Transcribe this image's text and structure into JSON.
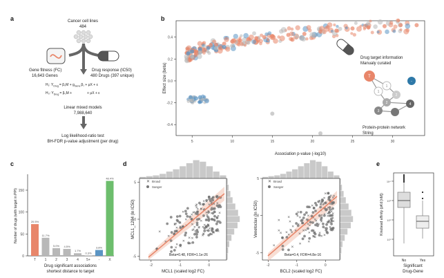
{
  "panel_letters": {
    "a": "a",
    "b": "b",
    "c": "c",
    "d": "d",
    "e": "e"
  },
  "panel_a": {
    "cell_lines_title": "Cancer cell lines",
    "cell_lines_count": "484",
    "gene_fitness_title": "Gene fitness (FC)",
    "gene_fitness_count": "16,643 Genes",
    "drug_response_title": "Drug response (IC50)",
    "drug_response_count": "480 Drugs (397 unique)",
    "h1_lhs": "H₁: Y",
    "h1_sub": "Drug",
    "h1_rhs": "= β₀M + g",
    "h1_sub2": "Gene",
    "h1_rest": "β₁ + μX + ε",
    "h0_lhs": "H₀: Y",
    "h0_sub": "Drug",
    "h0_rhs": "= β₀M +",
    "h0_rest": "+ μX + ε",
    "lmm_title": "Linear mixed models",
    "lmm_count": "7,988,640",
    "test_title": "Log likelihood-ratio test",
    "test_sub": "BH-FDR p-value adjustment (per drug)"
  },
  "panel_b": {
    "ylabel": "Effect size (beta)",
    "xlabel": "Association p-value (-log10)",
    "drug_target_title": "Drug target information",
    "drug_target_sub": "Manualy curated",
    "ppi_title": "Protein-protein network",
    "ppi_sub": "String",
    "node_T": "T",
    "node_1a": "1",
    "node_1b": "1",
    "node_2a": "2",
    "node_2b": "2",
    "node_3": "3",
    "node_4": "4",
    "node_dash": "-",
    "x_ticks": [
      "5",
      "10",
      "15",
      "20",
      "25",
      "30"
    ],
    "y_ticks": [
      "0.4",
      "0.2",
      "0.0",
      "-0.2",
      "-0.4"
    ],
    "colors": {
      "orange": "#E8866A",
      "blue": "#5B95C4",
      "grey": "#B8B8B8"
    }
  },
  "chart_data": [
    {
      "type": "scatter",
      "xlabel": "Association p-value (-log10)",
      "ylabel": "Effect size (beta)",
      "xlim": [
        3,
        34
      ],
      "ylim": [
        -0.5,
        0.55
      ],
      "series": [
        {
          "points": [
            [
              5,
              0.28
            ],
            [
              6,
              0.3
            ],
            [
              7,
              0.31
            ],
            [
              8,
              0.33
            ],
            [
              9,
              0.34
            ],
            [
              10,
              0.36
            ],
            [
              11,
              0.37
            ],
            [
              12,
              0.38
            ],
            [
              13,
              0.39
            ],
            [
              14,
              0.4
            ],
            [
              15,
              0.41
            ],
            [
              17,
              0.42
            ],
            [
              19,
              0.43
            ],
            [
              21,
              0.45
            ],
            [
              23,
              0.46
            ],
            [
              25,
              0.48
            ],
            [
              27,
              0.49
            ],
            [
              29,
              0.5
            ],
            [
              31,
              0.51
            ],
            [
              33,
              0.51
            ]
          ]
        },
        {
          "points": [
            [
              4.5,
              0.25
            ],
            [
              5,
              0.27
            ],
            [
              6,
              0.29
            ],
            [
              7,
              0.3
            ],
            [
              8,
              0.28
            ],
            [
              9,
              0.31
            ],
            [
              4.8,
              -0.15
            ],
            [
              5.2,
              -0.17
            ],
            [
              5.5,
              -0.16
            ],
            [
              6,
              -0.15
            ]
          ]
        },
        {
          "points": [
            [
              5,
              0.22
            ],
            [
              6,
              0.26
            ],
            [
              8,
              0.3
            ],
            [
              10,
              0.32
            ],
            [
              12,
              0.35
            ],
            [
              15,
              -0.3
            ],
            [
              21,
              -0.48
            ],
            [
              5,
              -0.18
            ]
          ]
        }
      ]
    },
    {
      "type": "bar",
      "ylabel": "Number of drugs (with target in PPI)",
      "xlabel": "Drug significant associations shortest distance to target",
      "categories": [
        "T",
        "1",
        "2",
        "3",
        "4",
        "5+",
        "-",
        "X"
      ],
      "values": [
        20.5,
        11.7,
        5.0,
        4.5,
        1.7,
        0.3,
        3.8,
        48.4
      ],
      "labels": [
        "20.5%",
        "11.7%",
        "5.0%",
        "4.5%",
        "1.7%",
        "0.3%",
        "3.8%",
        "48.4%"
      ],
      "colors": [
        "#E8866A",
        "#B8B8B8",
        "#B8B8B8",
        "#B8B8B8",
        "#B8B8B8",
        "#B8B8B8",
        "#5B95C4",
        "#6DBE6D"
      ]
    },
    {
      "type": "scatter",
      "xlabel": "MCL1 (scaled log2 FC)",
      "ylabel": "MCL1_1284 (ln IC50)",
      "xlim": [
        -2.4,
        0.6
      ],
      "ylim": [
        -5.5,
        5.5
      ],
      "series": [
        {
          "name": "Broad",
          "points": [
            [
              -1.5,
              -3
            ],
            [
              -1,
              -1
            ],
            [
              -0.8,
              0
            ],
            [
              -0.5,
              1
            ],
            [
              -0.3,
              2
            ],
            [
              0,
              3
            ],
            [
              -0.2,
              -2
            ],
            [
              0.2,
              1
            ]
          ]
        },
        {
          "name": "Sanger",
          "points": [
            [
              -1.8,
              -4
            ],
            [
              -1.2,
              -2
            ],
            [
              -0.9,
              -1
            ],
            [
              -0.6,
              0
            ],
            [
              -0.4,
              1
            ],
            [
              -0.2,
              2
            ],
            [
              0,
              3
            ],
            [
              0.1,
              0
            ],
            [
              -0.1,
              -1
            ]
          ]
        }
      ],
      "annotation": "Beta=0.48, FDR=1.1e-26"
    },
    {
      "type": "scatter",
      "xlabel": "BCL2 (scaled log2 FC)",
      "ylabel": "Venetoclax (ln IC50)",
      "xlim": [
        -2.2,
        0.5
      ],
      "ylim": [
        -6,
        5
      ],
      "series": [
        {
          "name": "Broad",
          "points": [
            [
              -1.8,
              -4
            ],
            [
              -1.2,
              -2
            ],
            [
              -0.6,
              0
            ],
            [
              -0.2,
              2
            ],
            [
              0,
              3
            ]
          ]
        },
        {
          "name": "Sanger",
          "points": [
            [
              -1.5,
              -3
            ],
            [
              -0.8,
              -1
            ],
            [
              -0.4,
              1
            ],
            [
              -0.1,
              2
            ],
            [
              0.1,
              3
            ]
          ]
        }
      ],
      "annotation": "Beta=0.4, FDR=4.8e-16"
    },
    {
      "type": "box",
      "ylabel": "Kinobead affinity (pKd [nM])",
      "xlabel": "Significant Drug-Gene",
      "categories": [
        "No",
        "Yes"
      ],
      "y_ticks": [
        "10⁴",
        "10³",
        "10²",
        "10¹"
      ]
    }
  ],
  "panel_c": {
    "ylabel": "Number of drugs (with target in PPI)",
    "xlabel1": "Drug significant associations",
    "xlabel2": "shortest distance to target",
    "y_ticks": [
      "0",
      "50",
      "100",
      "150"
    ]
  },
  "panel_d": {
    "left_ylabel": "MCL1_1284 (ln IC50)",
    "left_xlabel": "MCL1 (scaled log2 FC)",
    "left_annotation": "Beta=0.48, FDR=1.1e-26",
    "left_x_ticks": [
      "-2",
      "-1",
      "0"
    ],
    "left_y_ticks": [
      "5",
      "0",
      "-5"
    ],
    "right_ylabel": "Venetoclax (ln IC50)",
    "right_xlabel": "BCL2 (scaled log2 FC)",
    "right_annotation": "Beta=0.4, FDR=4.8e-16",
    "right_x_ticks": [
      "-2",
      "-1",
      "0"
    ],
    "right_y_ticks": [
      "5",
      "0",
      "-5"
    ],
    "legend_broad": "Broad",
    "legend_sanger": "Sanger"
  },
  "panel_e": {
    "ylabel": "Kinobead affinity (pKd [nM])",
    "xlabel1": "Significant",
    "xlabel2": "Drug-Gene",
    "cat_no": "No",
    "cat_yes": "Yes",
    "y_ticks": [
      "10⁴",
      "10³",
      "10²",
      "10¹"
    ]
  }
}
